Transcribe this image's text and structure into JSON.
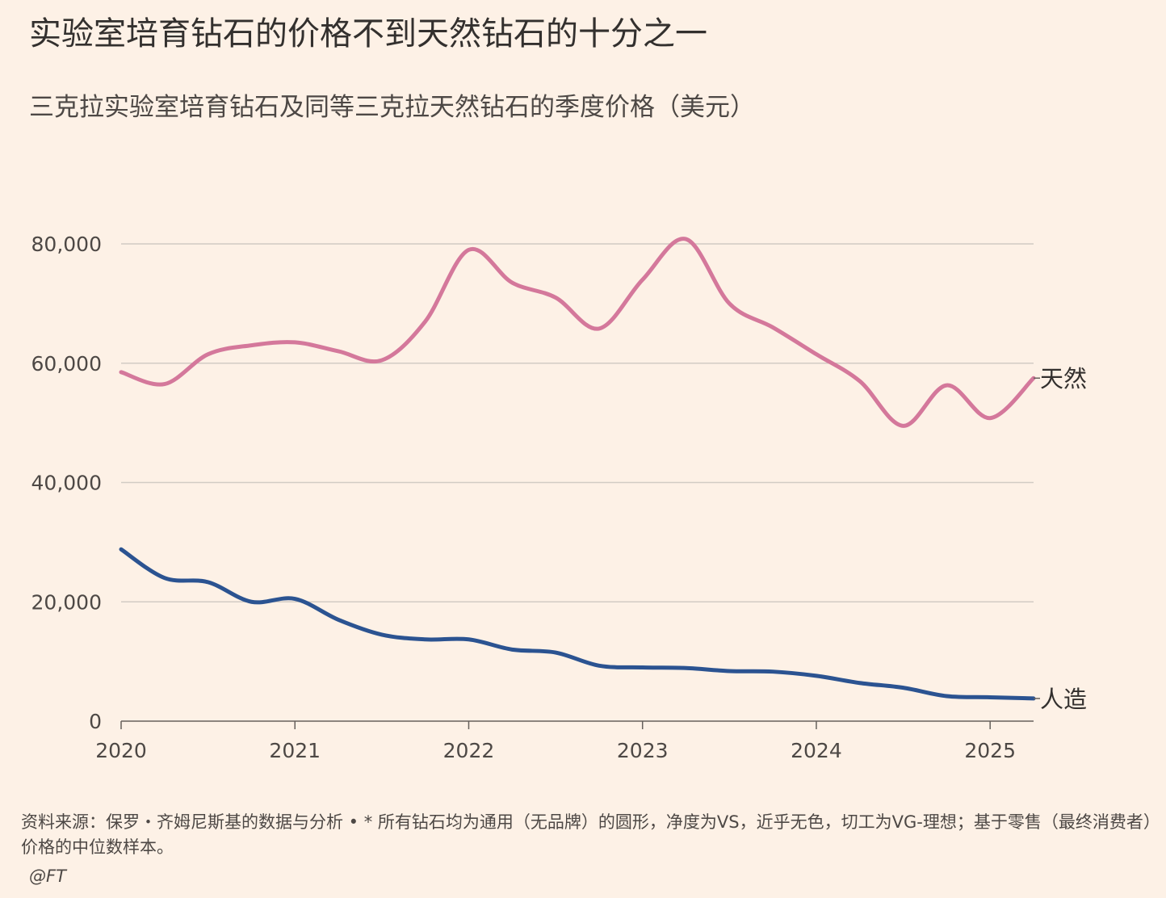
{
  "title": "实验室培育钻石的价格不到天然钻石的十分之一",
  "subtitle": "三克拉实验室培育钻石及同等三克拉天然钻石的季度价格（美元）",
  "footer": "资料来源：保罗・齐姆尼斯基的数据与分析 • * 所有钻石均为通用（无品牌）的圆形，净度为VS，近乎无色，切工为VG-理想；基于零售（最终消费者）价格的中位数样本。",
  "credit": "@FT",
  "chart_data": {
    "type": "line",
    "ylim": [
      0,
      80000
    ],
    "xlim": [
      2020.0,
      2025.25
    ],
    "y_ticks": [
      {
        "value": 0,
        "label": "0"
      },
      {
        "value": 20000,
        "label": "20,000"
      },
      {
        "value": 40000,
        "label": "40,000"
      },
      {
        "value": 60000,
        "label": "60,000"
      },
      {
        "value": 80000,
        "label": "80,000"
      }
    ],
    "x_ticks": [
      {
        "value": 2020,
        "label": "2020"
      },
      {
        "value": 2021,
        "label": "2021"
      },
      {
        "value": 2022,
        "label": "2022"
      },
      {
        "value": 2023,
        "label": "2023"
      },
      {
        "value": 2024,
        "label": "2024"
      },
      {
        "value": 2025,
        "label": "2025"
      }
    ],
    "grid": true,
    "x": [
      2020.0,
      2020.25,
      2020.5,
      2020.75,
      2021.0,
      2021.25,
      2021.5,
      2021.75,
      2022.0,
      2022.25,
      2022.5,
      2022.75,
      2023.0,
      2023.25,
      2023.5,
      2023.75,
      2024.0,
      2024.25,
      2024.5,
      2024.75,
      2025.0,
      2025.25
    ],
    "series": [
      {
        "name": "天然",
        "color": "#d4789b",
        "values": [
          58500,
          56500,
          61500,
          63000,
          63500,
          62000,
          60500,
          67000,
          79000,
          73500,
          71000,
          65800,
          74000,
          80800,
          70000,
          66000,
          61500,
          57000,
          49500,
          56300,
          50800,
          57500
        ]
      },
      {
        "name": "人造",
        "color": "#2b5391",
        "values": [
          28800,
          24000,
          23300,
          20000,
          20500,
          17000,
          14500,
          13700,
          13700,
          12000,
          11500,
          9300,
          9000,
          8900,
          8400,
          8300,
          7600,
          6400,
          5600,
          4200,
          4000,
          3800
        ]
      }
    ]
  }
}
